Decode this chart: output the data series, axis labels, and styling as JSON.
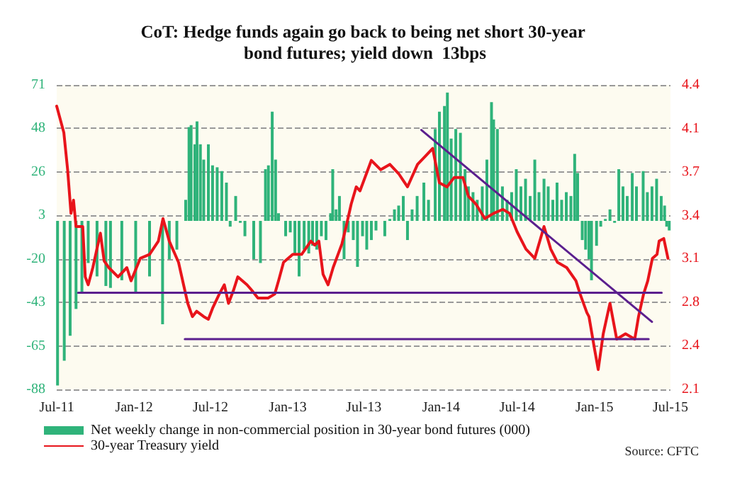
{
  "chart_data": {
    "type": "bar",
    "title": "CoT: Hedge funds again go back to being net short 30-year bond futures; yield down  13bps",
    "annotations": [
      "Source: CFTC"
    ],
    "xlim": [
      "2011-07-01",
      "2015-07-01"
    ],
    "xticks": [
      {
        "value": "2011-07-01",
        "label": "Jul-11"
      },
      {
        "value": "2012-01-01",
        "label": "Jan-12"
      },
      {
        "value": "2012-07-01",
        "label": "Jul-12"
      },
      {
        "value": "2013-01-01",
        "label": "Jan-13"
      },
      {
        "value": "2013-07-01",
        "label": "Jul-13"
      },
      {
        "value": "2014-01-01",
        "label": "Jan-14"
      },
      {
        "value": "2014-07-01",
        "label": "Jul-14"
      },
      {
        "value": "2015-01-01",
        "label": "Jan-15"
      },
      {
        "value": "2015-07-01",
        "label": "Jul-15"
      }
    ],
    "ylim": [
      -88,
      71
    ],
    "yticks": [
      -88,
      {
        "value": -65.29,
        "label": "-65"
      },
      {
        "value": -42.57,
        "label": "-43"
      },
      {
        "value": -19.86,
        "label": "-20"
      },
      {
        "value": 2.86,
        "label": "3"
      },
      {
        "value": 25.57,
        "label": "26"
      },
      {
        "value": 48.29,
        "label": "48"
      },
      71
    ],
    "y2lim": [
      2.1,
      4.4
    ],
    "y2ticks": [
      2.1,
      {
        "value": 2.43,
        "label": "2.4"
      },
      {
        "value": 2.76,
        "label": "2.8"
      },
      {
        "value": 3.09,
        "label": "3.1"
      },
      {
        "value": 3.41,
        "label": "3.4"
      },
      {
        "value": 3.74,
        "label": "3.7"
      },
      {
        "value": 4.07,
        "label": "4.1"
      },
      4.4
    ],
    "grid": "y",
    "legend": "bottom left",
    "marker": "none",
    "series": [
      {
        "name": "Net weekly change in non-commercial position in 30-year bond futures (000)",
        "color": "#2fb37a",
        "x": [
          "2011-07-03",
          "2011-07-19",
          "2011-08-02",
          "2011-08-16",
          "2011-08-30",
          "2011-09-14",
          "2011-10-05",
          "2011-10-26",
          "2011-11-06",
          "2011-12-03",
          "2012-01-05",
          "2012-02-07",
          "2012-03-09",
          "2012-03-25",
          "2012-04-12",
          "2012-05-03",
          "2012-05-11",
          "2012-05-16",
          "2012-05-25",
          "2012-05-30",
          "2012-06-07",
          "2012-06-15",
          "2012-06-26",
          "2012-07-06",
          "2012-07-17",
          "2012-07-28",
          "2012-08-08",
          "2012-08-17",
          "2012-08-30",
          "2012-09-10",
          "2012-09-21",
          "2012-10-12",
          "2012-10-28",
          "2012-11-09",
          "2012-11-16",
          "2012-11-25",
          "2012-12-03",
          "2012-12-10",
          "2012-12-27",
          "2013-01-07",
          "2013-01-18",
          "2013-01-28",
          "2013-02-09",
          "2013-02-20",
          "2013-03-01",
          "2013-03-11",
          "2013-03-22",
          "2013-04-02",
          "2013-04-13",
          "2013-04-18",
          "2013-04-26",
          "2013-05-04",
          "2013-05-15",
          "2013-05-25",
          "2013-06-06",
          "2013-06-16",
          "2013-06-28",
          "2013-07-08",
          "2013-07-19",
          "2013-07-30",
          "2013-08-20",
          "2013-09-01",
          "2013-09-12",
          "2013-09-22",
          "2013-10-03",
          "2013-10-13",
          "2013-10-24",
          "2013-11-05",
          "2013-11-21",
          "2013-12-02",
          "2013-12-18",
          "2013-12-28",
          "2014-01-09",
          "2014-01-16",
          "2014-01-25",
          "2014-02-05",
          "2014-02-16",
          "2014-02-27",
          "2014-03-07",
          "2014-03-18",
          "2014-03-28",
          "2014-04-09",
          "2014-04-20",
          "2014-05-01",
          "2014-05-06",
          "2014-05-15",
          "2014-05-27",
          "2014-06-07",
          "2014-06-18",
          "2014-06-29",
          "2014-07-10",
          "2014-07-21",
          "2014-08-01",
          "2014-08-12",
          "2014-08-22",
          "2014-09-03",
          "2014-09-13",
          "2014-09-24",
          "2014-10-04",
          "2014-10-15",
          "2014-10-26",
          "2014-11-06",
          "2014-11-15",
          "2014-11-22",
          "2014-12-03",
          "2014-12-11",
          "2014-12-19",
          "2014-12-25",
          "2015-01-06",
          "2015-01-16",
          "2015-01-27",
          "2015-02-07",
          "2015-02-18",
          "2015-02-28",
          "2015-03-10",
          "2015-03-20",
          "2015-04-01",
          "2015-04-11",
          "2015-04-27",
          "2015-05-07",
          "2015-05-18",
          "2015-05-29",
          "2015-06-09",
          "2015-06-17",
          "2015-06-22",
          "2015-06-28"
        ],
        "values": [
          -86,
          -73,
          -60,
          -46,
          -38,
          -22,
          -29,
          -34,
          -35,
          -31,
          -38,
          -29,
          -54,
          -20,
          -15,
          11,
          49,
          50,
          40,
          52,
          40,
          32,
          40,
          29,
          28,
          26,
          20,
          -3,
          13,
          -1,
          -8,
          -20,
          -22,
          27,
          29,
          57,
          32,
          4,
          -8,
          -6,
          -17,
          -29,
          -15,
          -17,
          -13,
          -15,
          -8,
          -10,
          4,
          27,
          6,
          13,
          -20,
          -6,
          -10,
          -24,
          -8,
          -15,
          -10,
          -5,
          -8,
          1,
          6,
          8,
          13,
          -10,
          6,
          13,
          20,
          11,
          48,
          57,
          60,
          67,
          43,
          48,
          46,
          27,
          18,
          15,
          11,
          18,
          32,
          62,
          53,
          48,
          18,
          11,
          15,
          27,
          18,
          22,
          13,
          32,
          15,
          22,
          18,
          11,
          20,
          11,
          15,
          13,
          35,
          25,
          -10,
          -15,
          -20,
          -31,
          -13,
          -3,
          1,
          6,
          -1,
          27,
          18,
          13,
          25,
          18,
          26,
          15,
          18,
          22,
          13,
          8,
          -3,
          -5
        ]
      },
      {
        "name": "30-year Treasury yield",
        "type": "line",
        "axis": "y2",
        "color": "#e8141b",
        "x": [
          "2011-07-01",
          "2011-07-18",
          "2011-07-27",
          "2011-08-04",
          "2011-08-10",
          "2011-08-16",
          "2011-09-01",
          "2011-09-07",
          "2011-09-14",
          "2011-09-25",
          "2011-10-13",
          "2011-10-22",
          "2011-11-02",
          "2011-11-24",
          "2011-12-15",
          "2011-12-25",
          "2012-01-16",
          "2012-02-07",
          "2012-02-28",
          "2012-03-10",
          "2012-03-25",
          "2012-04-16",
          "2012-04-28",
          "2012-05-08",
          "2012-05-19",
          "2012-05-29",
          "2012-06-15",
          "2012-06-26",
          "2012-07-07",
          "2012-07-22",
          "2012-08-03",
          "2012-08-13",
          "2012-08-25",
          "2012-09-04",
          "2012-09-26",
          "2012-10-07",
          "2012-10-22",
          "2012-11-15",
          "2012-12-01",
          "2012-12-10",
          "2012-12-22",
          "2013-01-13",
          "2013-02-03",
          "2013-02-25",
          "2013-03-06",
          "2013-03-16",
          "2013-03-26",
          "2013-04-07",
          "2013-04-19",
          "2013-05-10",
          "2013-05-20",
          "2013-06-01",
          "2013-06-13",
          "2013-06-22",
          "2013-07-19",
          "2013-08-10",
          "2013-09-01",
          "2013-09-22",
          "2013-10-13",
          "2013-11-06",
          "2013-11-27",
          "2013-12-12",
          "2013-12-28",
          "2014-01-15",
          "2014-02-01",
          "2014-02-22",
          "2014-03-07",
          "2014-03-25",
          "2014-04-15",
          "2014-05-06",
          "2014-05-28",
          "2014-06-13",
          "2014-07-01",
          "2014-07-22",
          "2014-08-12",
          "2014-09-03",
          "2014-09-19",
          "2014-10-05",
          "2014-10-27",
          "2014-11-18",
          "2014-11-28",
          "2014-12-14",
          "2014-12-19",
          "2015-01-01",
          "2015-01-10",
          "2015-01-22",
          "2015-02-02",
          "2015-02-07",
          "2015-02-23",
          "2015-03-16",
          "2015-04-07",
          "2015-04-16",
          "2015-04-28",
          "2015-05-08",
          "2015-05-19",
          "2015-05-30",
          "2015-06-04",
          "2015-06-15",
          "2015-06-25"
        ],
        "values": [
          4.24,
          4.04,
          3.76,
          3.43,
          3.53,
          3.33,
          3.33,
          2.95,
          2.89,
          3.02,
          3.28,
          3.07,
          3.02,
          2.95,
          3.02,
          2.92,
          3.09,
          3.12,
          3.22,
          3.39,
          3.22,
          3.06,
          2.89,
          2.75,
          2.65,
          2.69,
          2.65,
          2.63,
          2.72,
          2.82,
          2.89,
          2.75,
          2.85,
          2.95,
          2.89,
          2.85,
          2.79,
          2.79,
          2.82,
          2.92,
          3.06,
          3.12,
          3.12,
          3.22,
          3.19,
          3.22,
          2.97,
          2.89,
          3.02,
          3.2,
          3.33,
          3.5,
          3.63,
          3.6,
          3.83,
          3.76,
          3.8,
          3.73,
          3.63,
          3.8,
          3.87,
          3.92,
          3.66,
          3.63,
          3.7,
          3.7,
          3.56,
          3.5,
          3.39,
          3.43,
          3.46,
          3.43,
          3.29,
          3.16,
          3.09,
          3.33,
          3.16,
          3.06,
          3.02,
          2.92,
          2.82,
          2.68,
          2.65,
          2.41,
          2.25,
          2.52,
          2.68,
          2.75,
          2.48,
          2.52,
          2.48,
          2.65,
          2.82,
          2.92,
          3.09,
          3.12,
          3.22,
          3.24,
          3.09
        ]
      },
      {
        "type": "line",
        "axis": "y2",
        "color": "#5b1f8e",
        "x": [
          "2013-11-15",
          "2015-05-18"
        ],
        "values": [
          4.06,
          2.61
        ]
      },
      {
        "type": "line",
        "axis": "y2",
        "color": "#5b1f8e",
        "x": [
          "2011-08-21",
          "2015-06-10"
        ],
        "values": [
          2.83,
          2.83
        ]
      },
      {
        "type": "line",
        "axis": "y2",
        "color": "#5b1f8e",
        "x": [
          "2012-05-01",
          "2015-05-10"
        ],
        "values": [
          2.48,
          2.48
        ]
      }
    ]
  }
}
